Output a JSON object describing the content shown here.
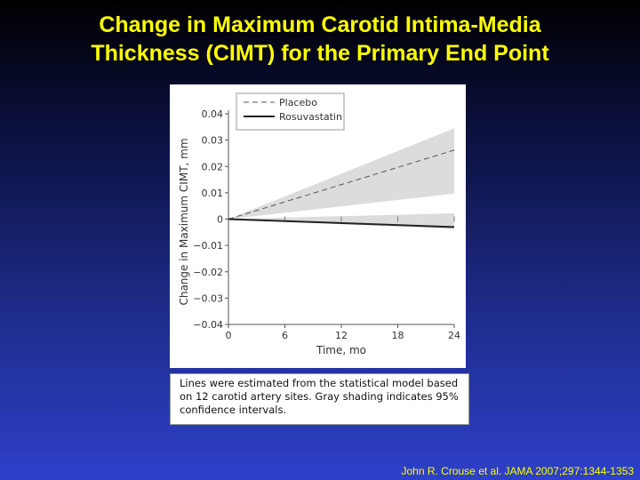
{
  "slide": {
    "title_line1": "Change in Maximum Carotid Intima-Media",
    "title_line2": "Thickness (CIMT) for the Primary End Point",
    "caption": "Lines were estimated from the statistical model based on 12 carotid artery sites. Gray shading indicates 95% confidence intervals.",
    "citation": "John R. Crouse et al. JAMA 2007;297:1344-1353"
  },
  "colors": {
    "title": "#ffff00",
    "ci_fill": "#dcdcdc",
    "line": "#222222"
  },
  "chart_data": {
    "type": "line",
    "title": "",
    "xlabel": "Time, mo",
    "ylabel": "Change in Maximum CIMT, mm",
    "xlim": [
      0,
      24
    ],
    "ylim": [
      -0.04,
      0.04
    ],
    "x_ticks": [
      0,
      6,
      12,
      18,
      24
    ],
    "y_ticks": [
      0.04,
      0.03,
      0.02,
      0.01,
      0,
      -0.01,
      -0.02,
      -0.03,
      -0.04
    ],
    "y_tick_labels": [
      "0.04",
      "0.03",
      "0.02",
      "0.01",
      "0",
      "−0.01",
      "−0.02",
      "−0.03",
      "−0.04"
    ],
    "legend_position": "top-left",
    "grid": false,
    "series": [
      {
        "name": "Placebo",
        "style": "dashed",
        "x": [
          0,
          24
        ],
        "y": [
          0,
          0.0262
        ],
        "ci_lower": [
          0,
          0.0097
        ],
        "ci_upper": [
          0,
          0.0345
        ]
      },
      {
        "name": "Rosuvastatin",
        "style": "solid",
        "x": [
          0,
          24
        ],
        "y": [
          0,
          -0.003
        ],
        "ci_lower": [
          0,
          -0.0038
        ],
        "ci_upper": [
          0,
          0.0022
        ]
      }
    ]
  }
}
